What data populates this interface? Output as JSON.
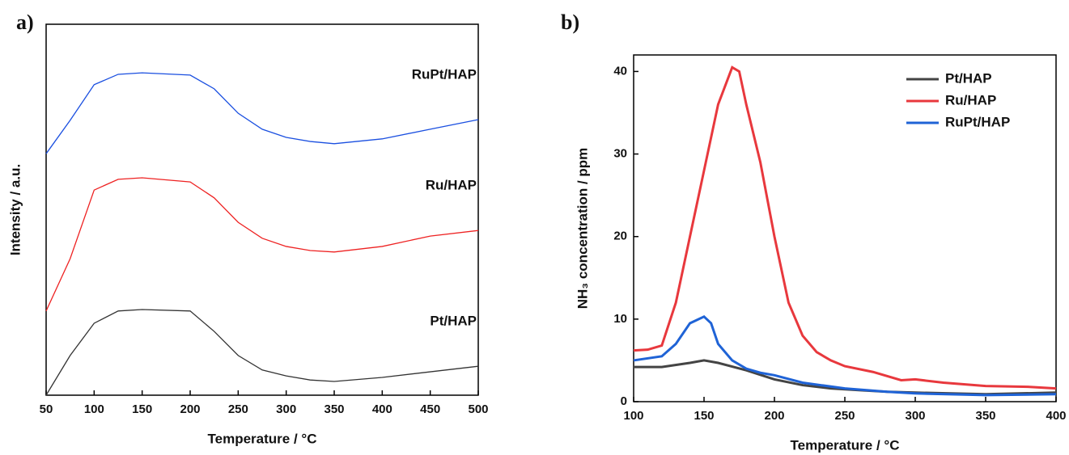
{
  "chart_data": [
    {
      "type": "line",
      "panel_label": "a)",
      "x_label": "Temperature / °C",
      "y_label": "Intensity / a.u.",
      "xlim": [
        50,
        500
      ],
      "xticks": [
        50,
        100,
        150,
        200,
        250,
        300,
        350,
        400,
        450,
        500
      ],
      "ylim": [
        0,
        100
      ],
      "legend": "inline",
      "series": [
        {
          "name": "Pt/HAP",
          "color": "#333333",
          "x": [
            50,
            75,
            100,
            125,
            150,
            200,
            225,
            250,
            275,
            300,
            325,
            350,
            400,
            450,
            500
          ],
          "values": [
            0,
            10.7,
            19.4,
            22.7,
            23.1,
            22.7,
            17.2,
            10.7,
            6.8,
            5.2,
            4.1,
            3.7,
            4.8,
            6.3,
            7.8
          ]
        },
        {
          "name": "Ru/HAP",
          "color": "#ee2222",
          "x": [
            50,
            75,
            100,
            125,
            150,
            200,
            225,
            250,
            275,
            300,
            325,
            350,
            400,
            450,
            500
          ],
          "values": [
            22.7,
            36.8,
            55.3,
            58.2,
            58.6,
            57.5,
            53.2,
            46.6,
            42.3,
            40.1,
            39,
            38.6,
            40.1,
            42.9,
            44.4
          ]
        },
        {
          "name": "RuPt/HAP",
          "color": "#1a4fe0",
          "x": [
            50,
            75,
            100,
            125,
            150,
            200,
            225,
            250,
            275,
            300,
            325,
            350,
            400,
            450,
            500
          ],
          "values": [
            65.1,
            74.1,
            83.7,
            86.5,
            86.9,
            86.3,
            82.6,
            76,
            71.7,
            69.5,
            68.4,
            67.8,
            69.1,
            71.7,
            74.3
          ]
        }
      ]
    },
    {
      "type": "line",
      "panel_label": "b)",
      "x_label": "Temperature / °C",
      "y_label": "NH₃ concentration / ppm",
      "xlim": [
        100,
        400
      ],
      "xticks": [
        100,
        150,
        200,
        250,
        300,
        350,
        400
      ],
      "ylim": [
        0,
        42
      ],
      "yticks": [
        0,
        10,
        20,
        30,
        40
      ],
      "legend": "top-right",
      "series": [
        {
          "name": "Pt/HAP",
          "color": "#444444",
          "x": [
            100,
            120,
            140,
            150,
            160,
            180,
            200,
            220,
            240,
            260,
            280,
            300,
            350,
            400
          ],
          "values": [
            4.2,
            4.2,
            4.7,
            5,
            4.7,
            3.8,
            2.7,
            2,
            1.6,
            1.4,
            1.2,
            1.1,
            0.9,
            1.1
          ]
        },
        {
          "name": "Ru/HAP",
          "color": "#e8383d",
          "x": [
            100,
            110,
            120,
            130,
            140,
            150,
            160,
            170,
            175,
            180,
            190,
            200,
            210,
            220,
            230,
            240,
            250,
            270,
            290,
            300,
            320,
            350,
            380,
            400
          ],
          "values": [
            6.2,
            6.3,
            6.8,
            12,
            20,
            28,
            36,
            40.5,
            40,
            36,
            29,
            20,
            12,
            8,
            6,
            5,
            4.3,
            3.6,
            2.6,
            2.7,
            2.3,
            1.9,
            1.8,
            1.6
          ]
        },
        {
          "name": "RuPt/HAP",
          "color": "#1f63d6",
          "x": [
            100,
            120,
            130,
            140,
            150,
            155,
            160,
            170,
            180,
            190,
            200,
            220,
            250,
            280,
            300,
            350,
            400
          ],
          "values": [
            5,
            5.5,
            7,
            9.5,
            10.3,
            9.5,
            7,
            5,
            4,
            3.5,
            3.2,
            2.3,
            1.6,
            1.2,
            1,
            0.8,
            0.9
          ]
        }
      ]
    }
  ]
}
